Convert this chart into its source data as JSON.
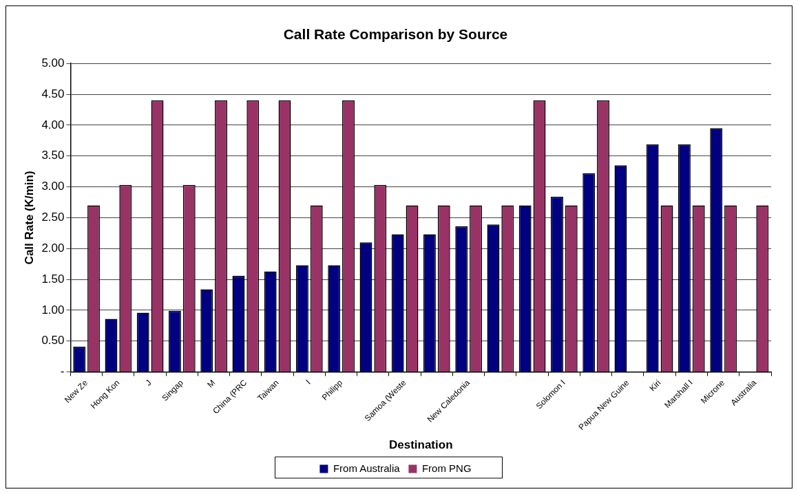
{
  "chart_data": {
    "type": "bar",
    "title": "Call Rate Comparison by Source",
    "xlabel": "Destination",
    "ylabel": "Call Rate (K/min)",
    "categories": [
      "New Ze",
      "Hong Kon",
      "J",
      "Singap",
      "M",
      "China (PRC",
      "Taiwan",
      "I",
      "Philipp",
      null,
      "Samoa (Weste",
      null,
      "New Caledonia",
      null,
      null,
      "Solomon I",
      null,
      "Papua New Guine",
      "Kiri",
      "Marshall I",
      "Microne",
      "Australia"
    ],
    "series": [
      {
        "name": "From Australia",
        "color": "#000080",
        "values": [
          0.41,
          0.86,
          0.96,
          0.99,
          1.34,
          1.56,
          1.63,
          1.73,
          1.73,
          2.1,
          2.23,
          2.23,
          2.36,
          2.39,
          2.7,
          2.84,
          3.22,
          3.35,
          3.69,
          3.69,
          3.95,
          null
        ]
      },
      {
        "name": "From PNG",
        "color": "#993366",
        "values": [
          2.7,
          3.03,
          4.4,
          3.03,
          4.4,
          4.4,
          4.4,
          2.7,
          4.4,
          3.03,
          2.7,
          2.7,
          2.7,
          2.7,
          4.4,
          2.7,
          4.4,
          null,
          2.7,
          2.7,
          2.7,
          2.7
        ]
      }
    ],
    "ylim": [
      0,
      5
    ],
    "yticks": [
      {
        "value": 0,
        "label": "-"
      },
      {
        "value": 0.5,
        "label": "0.50"
      },
      {
        "value": 1,
        "label": "1.00"
      },
      {
        "value": 1.5,
        "label": "1.50"
      },
      {
        "value": 2,
        "label": "2.00"
      },
      {
        "value": 2.5,
        "label": "2.50"
      },
      {
        "value": 3,
        "label": "3.00"
      },
      {
        "value": 3.5,
        "label": "3.50"
      },
      {
        "value": 4,
        "label": "4.00"
      },
      {
        "value": 4.5,
        "label": "4.50"
      },
      {
        "value": 5,
        "label": "5.00"
      }
    ],
    "grid": "y",
    "legend": "bottom"
  }
}
